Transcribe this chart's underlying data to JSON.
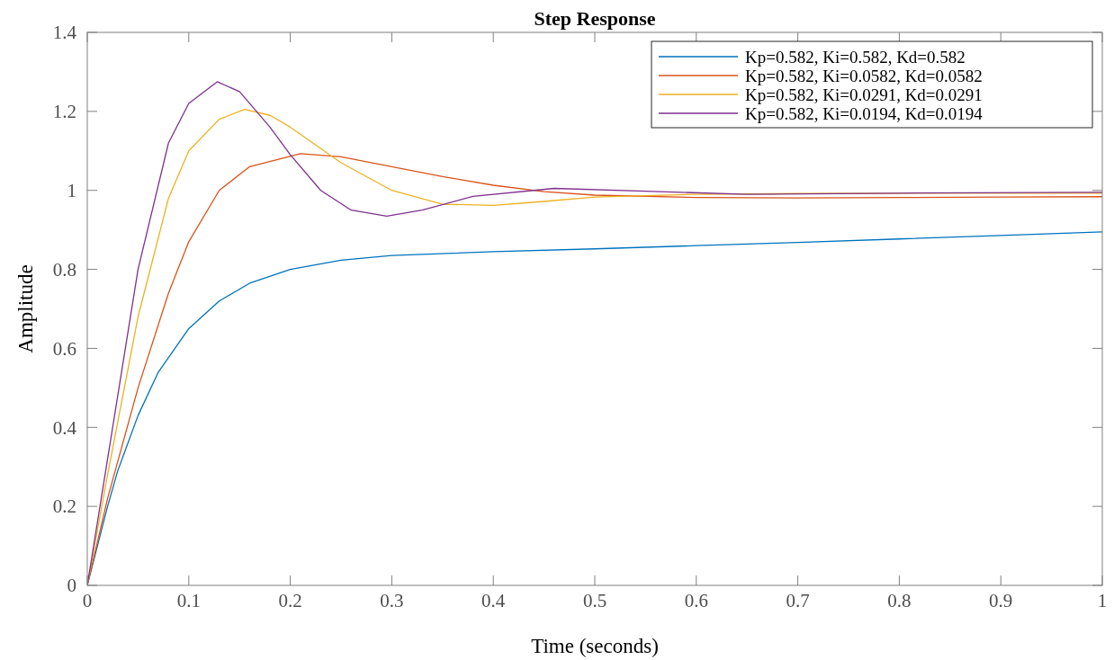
{
  "chart_data": {
    "type": "line",
    "title": "Step Response",
    "xlabel": "Time (seconds)",
    "ylabel": "Amplitude",
    "xlim": [
      0,
      1
    ],
    "ylim": [
      0,
      1.4
    ],
    "xticks": [
      0,
      0.1,
      0.2,
      0.3,
      0.4,
      0.5,
      0.6,
      0.7,
      0.8,
      0.9,
      1
    ],
    "yticks": [
      0,
      0.2,
      0.4,
      0.6,
      0.8,
      1,
      1.2,
      1.4
    ],
    "grid": false,
    "legend": "top right",
    "marker": "none",
    "line_style": "solid",
    "series": [
      {
        "name": "Kp=0.582, Ki=0.582, Kd=0.582",
        "color": "#0072bd",
        "x": [
          0,
          0.01,
          0.02,
          0.03,
          0.05,
          0.07,
          0.1,
          0.13,
          0.16,
          0.2,
          0.25,
          0.3,
          0.4,
          0.5,
          0.6,
          0.7,
          0.8,
          0.9,
          1
        ],
        "values": [
          0,
          0.1,
          0.2,
          0.29,
          0.43,
          0.54,
          0.65,
          0.72,
          0.765,
          0.8,
          0.823,
          0.835,
          0.845,
          0.852,
          0.86,
          0.868,
          0.877,
          0.886,
          0.895
        ]
      },
      {
        "name": "Kp=0.582, Ki=0.0582, Kd=0.0582",
        "color": "#d95319",
        "x": [
          0,
          0.02,
          0.05,
          0.08,
          0.1,
          0.13,
          0.16,
          0.21,
          0.25,
          0.3,
          0.35,
          0.4,
          0.45,
          0.5,
          0.6,
          0.7,
          0.8,
          0.9,
          1
        ],
        "values": [
          0,
          0.22,
          0.5,
          0.74,
          0.87,
          1,
          1.06,
          1.093,
          1.085,
          1.06,
          1.035,
          1.013,
          0.997,
          0.988,
          0.982,
          0.981,
          0.982,
          0.983,
          0.984
        ]
      },
      {
        "name": "Kp=0.582, Ki=0.0291, Kd=0.0291",
        "color": "#edb120",
        "x": [
          0,
          0.02,
          0.05,
          0.08,
          0.1,
          0.13,
          0.155,
          0.18,
          0.2,
          0.25,
          0.3,
          0.35,
          0.4,
          0.45,
          0.5,
          0.6,
          0.7,
          0.8,
          0.9,
          1
        ],
        "values": [
          0,
          0.28,
          0.68,
          0.98,
          1.1,
          1.18,
          1.205,
          1.19,
          1.16,
          1.07,
          1,
          0.965,
          0.962,
          0.972,
          0.983,
          0.99,
          0.992,
          0.993,
          0.993,
          0.993
        ]
      },
      {
        "name": "Kp=0.582, Ki=0.0194, Kd=0.0194",
        "color": "#7e2f8e",
        "x": [
          0,
          0.02,
          0.05,
          0.08,
          0.1,
          0.128,
          0.15,
          0.18,
          0.2,
          0.23,
          0.26,
          0.295,
          0.33,
          0.38,
          0.46,
          0.55,
          0.65,
          0.8,
          1
        ],
        "values": [
          0,
          0.32,
          0.8,
          1.12,
          1.22,
          1.275,
          1.25,
          1.16,
          1.09,
          1,
          0.95,
          0.935,
          0.95,
          0.985,
          1.005,
          0.998,
          0.99,
          0.993,
          0.995
        ]
      }
    ]
  }
}
